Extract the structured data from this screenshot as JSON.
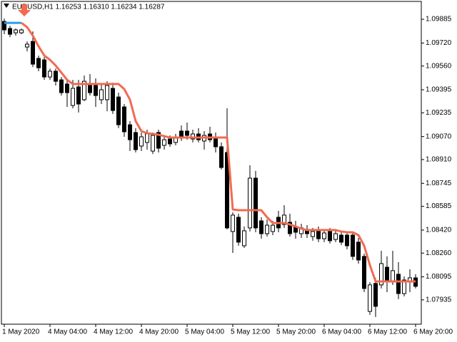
{
  "chart_data": {
    "type": "candlestick",
    "title": "EURUSD,H1  1.16253 1.16310 1.16234 1.16287",
    "categories": [
      "1 May 2020",
      null,
      null,
      null,
      null,
      null,
      null,
      null,
      "4 May 04:00",
      null,
      null,
      null,
      null,
      null,
      null,
      null,
      "4 May 12:00",
      null,
      null,
      null,
      null,
      null,
      null,
      null,
      "4 May 20:00",
      null,
      null,
      null,
      null,
      null,
      null,
      null,
      "5 May 04:00",
      null,
      null,
      null,
      null,
      null,
      null,
      null,
      "5 May 12:00",
      null,
      null,
      null,
      null,
      null,
      null,
      null,
      "5 May 20:00",
      null,
      null,
      null,
      null,
      null,
      null,
      null,
      "6 May 04:00",
      null,
      null,
      null,
      null,
      null,
      null,
      null,
      "6 May 12:00",
      null,
      null,
      null,
      null,
      null,
      null,
      null,
      "6 May 20:00"
    ],
    "open": [
      1.0987,
      1.09821,
      1.09791,
      1.09791,
      1.09692,
      1.09731,
      1.09613,
      1.09603,
      1.09484,
      1.09524,
      1.09464,
      1.09435,
      1.09286,
      1.09415,
      1.09326,
      1.09425,
      1.09425,
      1.09326,
      1.09326,
      1.09405,
      1.09345,
      1.09276,
      1.09152,
      1.09098,
      1.09004,
      1.09029,
      1.08969,
      1.09098,
      1.09009,
      1.09053,
      1.09029,
      1.09108,
      1.09108,
      1.09053,
      1.09088,
      1.09039,
      1.09088,
      1.09058,
      1.08999,
      1.08959,
      1.0841,
      1.08509,
      1.08311,
      1.08435,
      1.08781,
      1.08484,
      1.08395,
      1.0841,
      1.08509,
      1.08459,
      1.08474,
      1.08445,
      1.08395,
      1.08425,
      1.08375,
      1.0842,
      1.0836,
      1.0841,
      1.08355,
      1.08385,
      1.08385,
      1.08385,
      1.08336,
      1.08237,
      1.07855,
      1.08049,
      1.08039,
      1.08162,
      1.08063,
      1.08113,
      1.07979,
      1.08058,
      1.08088
    ],
    "high": [
      1.0989,
      1.0984,
      1.09821,
      1.09821,
      1.09731,
      1.09801,
      1.09633,
      1.09623,
      1.09543,
      1.09543,
      1.09484,
      1.09464,
      1.09464,
      1.09464,
      1.09494,
      1.09504,
      1.09474,
      1.09435,
      1.09454,
      1.09444,
      1.09375,
      1.09296,
      1.09177,
      1.09128,
      1.09098,
      1.09118,
      1.09098,
      1.09118,
      1.09078,
      1.09078,
      1.09088,
      1.09147,
      1.09167,
      1.09118,
      1.09128,
      1.09108,
      1.09138,
      1.09098,
      1.09029,
      1.09266,
      1.08544,
      1.08534,
      1.08445,
      1.0887,
      1.08831,
      1.08509,
      1.08494,
      1.08484,
      1.08553,
      1.08593,
      1.08534,
      1.08484,
      1.08464,
      1.08454,
      1.08435,
      1.08445,
      1.08425,
      1.08435,
      1.08425,
      1.0841,
      1.08405,
      1.08405,
      1.08365,
      1.08256,
      1.08058,
      1.08088,
      1.08276,
      1.08237,
      1.08276,
      1.08197,
      1.08098,
      1.08148,
      1.08113
    ],
    "low": [
      1.09781,
      1.09761,
      1.09771,
      1.09781,
      1.09662,
      1.09553,
      1.09524,
      1.09464,
      1.09464,
      1.09425,
      1.09355,
      1.09276,
      1.09266,
      1.09237,
      1.09316,
      1.09355,
      1.09276,
      1.09296,
      1.09246,
      1.09227,
      1.09128,
      1.09068,
      1.08969,
      1.08959,
      1.08969,
      1.08979,
      1.08949,
      1.08959,
      1.08979,
      1.08999,
      1.09009,
      1.09039,
      1.09048,
      1.09029,
      1.09029,
      1.08979,
      1.09029,
      1.08959,
      1.08841,
      1.08425,
      1.08261,
      1.08311,
      1.08296,
      1.0841,
      1.08405,
      1.0836,
      1.08375,
      1.08385,
      1.08405,
      1.08435,
      1.08375,
      1.0836,
      1.08365,
      1.08365,
      1.08346,
      1.08336,
      1.08336,
      1.08326,
      1.08336,
      1.08316,
      1.08286,
      1.08212,
      1.08187,
      1.07989,
      1.07831,
      1.07816,
      1.08014,
      1.07989,
      1.08039,
      1.0794,
      1.07959,
      1.07989,
      1.08014
    ],
    "close": [
      1.09811,
      1.09781,
      1.09811,
      1.09811,
      1.09712,
      1.09573,
      1.09548,
      1.09484,
      1.09524,
      1.09454,
      1.09375,
      1.09375,
      1.09405,
      1.09296,
      1.09454,
      1.09375,
      1.09355,
      1.09395,
      1.09425,
      1.09251,
      1.09152,
      1.09103,
      1.09048,
      1.08979,
      1.09068,
      1.09088,
      1.09078,
      1.08989,
      1.09048,
      1.09019,
      1.09058,
      1.09058,
      1.09078,
      1.09088,
      1.09048,
      1.09078,
      1.09048,
      1.08999,
      1.08855,
      1.08435,
      1.08524,
      1.08336,
      1.08415,
      1.08781,
      1.08435,
      1.08395,
      1.08454,
      1.08454,
      1.08435,
      1.08524,
      1.08395,
      1.08405,
      1.08435,
      1.08395,
      1.0841,
      1.0836,
      1.084,
      1.08346,
      1.08395,
      1.08336,
      1.08311,
      1.08237,
      1.08212,
      1.08014,
      1.08039,
      1.0789,
      1.08187,
      1.08063,
      1.08138,
      1.07979,
      1.08073,
      1.08088,
      1.08029
    ],
    "up_color": "#ffffff",
    "down_color": "#000000",
    "outline_color": "#000000",
    "series": [
      {
        "color": "#2e9bf0",
        "values": [
          1.0986,
          1.0986,
          1.0986,
          1.0986,
          null,
          null,
          null,
          null,
          null,
          null,
          null,
          null,
          null,
          null,
          null,
          null,
          null,
          null,
          null,
          null,
          null,
          null,
          null,
          null,
          null,
          null,
          null,
          null,
          null,
          null,
          null,
          null,
          null,
          null,
          null,
          null,
          null,
          null,
          null,
          null,
          null,
          null,
          null,
          null,
          null,
          null,
          null,
          null,
          null,
          null,
          null,
          null,
          null,
          null,
          null,
          null,
          null,
          null,
          null,
          null,
          null,
          null,
          null,
          null,
          null,
          null,
          null,
          null,
          null,
          null,
          null,
          null,
          null
        ]
      },
      {
        "color": "#f26a50",
        "values": [
          null,
          null,
          null,
          1.0986,
          1.0983,
          1.09771,
          1.09697,
          1.09633,
          1.09603,
          1.09563,
          1.09514,
          1.09464,
          1.09435,
          1.09435,
          1.09435,
          1.09435,
          1.09435,
          1.09435,
          1.09435,
          1.09435,
          1.09435,
          1.094,
          1.09326,
          1.09177,
          1.09108,
          1.09093,
          1.09088,
          1.09083,
          1.09073,
          1.09063,
          1.09063,
          1.09063,
          1.09063,
          1.09063,
          1.09063,
          1.09063,
          1.09063,
          1.09063,
          1.09063,
          1.09063,
          1.08563,
          1.08558,
          1.08558,
          1.08558,
          1.08558,
          1.08558,
          1.08509,
          1.08469,
          1.08469,
          1.08469,
          1.08459,
          1.08445,
          1.0843,
          1.0842,
          1.0842,
          1.0842,
          1.0842,
          1.0842,
          1.0842,
          1.0841,
          1.08405,
          1.08405,
          1.08385,
          1.08311,
          1.08177,
          1.08063,
          1.08063,
          1.08063,
          1.08063,
          1.08063,
          1.08063,
          1.08063,
          1.08063
        ]
      }
    ],
    "ylim": [
      1.07766,
      1.10009
    ],
    "yticks": [
      1.09885,
      {
        "value": 1.0972,
        "label": "1.09720"
      },
      {
        "value": 1.0956,
        "label": "1.09560"
      },
      1.09395,
      1.09235,
      {
        "value": 1.0907,
        "label": "1.09070"
      },
      {
        "value": 1.0891,
        "label": "1.08910"
      },
      1.08745,
      1.08585,
      {
        "value": 1.0842,
        "label": "1.08420"
      },
      {
        "value": 1.0826,
        "label": "1.08260"
      },
      1.08095,
      1.07935
    ],
    "grid": false
  }
}
